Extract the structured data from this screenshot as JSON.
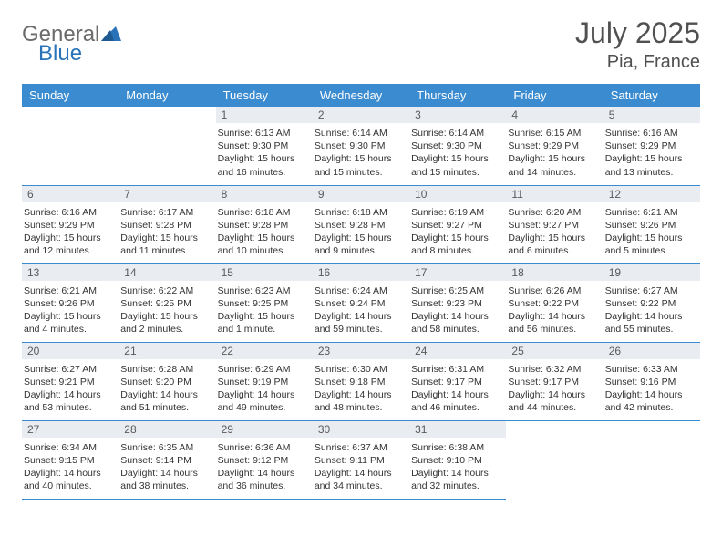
{
  "logo": {
    "word1": "General",
    "word2": "Blue"
  },
  "header": {
    "title": "July 2025",
    "location": "Pia, France"
  },
  "colors": {
    "header_bg": "#3a8bd0",
    "header_text": "#ffffff",
    "daynum_bg": "#e9edf1",
    "border": "#3a8bd0",
    "logo_gray": "#6b6b6b",
    "logo_blue": "#2a73b8"
  },
  "dayNames": [
    "Sunday",
    "Monday",
    "Tuesday",
    "Wednesday",
    "Thursday",
    "Friday",
    "Saturday"
  ],
  "startOffset": 2,
  "daysInMonth": 31,
  "labels": {
    "sunrise": "Sunrise:",
    "sunset": "Sunset:",
    "daylight": "Daylight:"
  },
  "days": {
    "1": {
      "sunrise": "6:13 AM",
      "sunset": "9:30 PM",
      "daylight": "15 hours and 16 minutes."
    },
    "2": {
      "sunrise": "6:14 AM",
      "sunset": "9:30 PM",
      "daylight": "15 hours and 15 minutes."
    },
    "3": {
      "sunrise": "6:14 AM",
      "sunset": "9:30 PM",
      "daylight": "15 hours and 15 minutes."
    },
    "4": {
      "sunrise": "6:15 AM",
      "sunset": "9:29 PM",
      "daylight": "15 hours and 14 minutes."
    },
    "5": {
      "sunrise": "6:16 AM",
      "sunset": "9:29 PM",
      "daylight": "15 hours and 13 minutes."
    },
    "6": {
      "sunrise": "6:16 AM",
      "sunset": "9:29 PM",
      "daylight": "15 hours and 12 minutes."
    },
    "7": {
      "sunrise": "6:17 AM",
      "sunset": "9:28 PM",
      "daylight": "15 hours and 11 minutes."
    },
    "8": {
      "sunrise": "6:18 AM",
      "sunset": "9:28 PM",
      "daylight": "15 hours and 10 minutes."
    },
    "9": {
      "sunrise": "6:18 AM",
      "sunset": "9:28 PM",
      "daylight": "15 hours and 9 minutes."
    },
    "10": {
      "sunrise": "6:19 AM",
      "sunset": "9:27 PM",
      "daylight": "15 hours and 8 minutes."
    },
    "11": {
      "sunrise": "6:20 AM",
      "sunset": "9:27 PM",
      "daylight": "15 hours and 6 minutes."
    },
    "12": {
      "sunrise": "6:21 AM",
      "sunset": "9:26 PM",
      "daylight": "15 hours and 5 minutes."
    },
    "13": {
      "sunrise": "6:21 AM",
      "sunset": "9:26 PM",
      "daylight": "15 hours and 4 minutes."
    },
    "14": {
      "sunrise": "6:22 AM",
      "sunset": "9:25 PM",
      "daylight": "15 hours and 2 minutes."
    },
    "15": {
      "sunrise": "6:23 AM",
      "sunset": "9:25 PM",
      "daylight": "15 hours and 1 minute."
    },
    "16": {
      "sunrise": "6:24 AM",
      "sunset": "9:24 PM",
      "daylight": "14 hours and 59 minutes."
    },
    "17": {
      "sunrise": "6:25 AM",
      "sunset": "9:23 PM",
      "daylight": "14 hours and 58 minutes."
    },
    "18": {
      "sunrise": "6:26 AM",
      "sunset": "9:22 PM",
      "daylight": "14 hours and 56 minutes."
    },
    "19": {
      "sunrise": "6:27 AM",
      "sunset": "9:22 PM",
      "daylight": "14 hours and 55 minutes."
    },
    "20": {
      "sunrise": "6:27 AM",
      "sunset": "9:21 PM",
      "daylight": "14 hours and 53 minutes."
    },
    "21": {
      "sunrise": "6:28 AM",
      "sunset": "9:20 PM",
      "daylight": "14 hours and 51 minutes."
    },
    "22": {
      "sunrise": "6:29 AM",
      "sunset": "9:19 PM",
      "daylight": "14 hours and 49 minutes."
    },
    "23": {
      "sunrise": "6:30 AM",
      "sunset": "9:18 PM",
      "daylight": "14 hours and 48 minutes."
    },
    "24": {
      "sunrise": "6:31 AM",
      "sunset": "9:17 PM",
      "daylight": "14 hours and 46 minutes."
    },
    "25": {
      "sunrise": "6:32 AM",
      "sunset": "9:17 PM",
      "daylight": "14 hours and 44 minutes."
    },
    "26": {
      "sunrise": "6:33 AM",
      "sunset": "9:16 PM",
      "daylight": "14 hours and 42 minutes."
    },
    "27": {
      "sunrise": "6:34 AM",
      "sunset": "9:15 PM",
      "daylight": "14 hours and 40 minutes."
    },
    "28": {
      "sunrise": "6:35 AM",
      "sunset": "9:14 PM",
      "daylight": "14 hours and 38 minutes."
    },
    "29": {
      "sunrise": "6:36 AM",
      "sunset": "9:12 PM",
      "daylight": "14 hours and 36 minutes."
    },
    "30": {
      "sunrise": "6:37 AM",
      "sunset": "9:11 PM",
      "daylight": "14 hours and 34 minutes."
    },
    "31": {
      "sunrise": "6:38 AM",
      "sunset": "9:10 PM",
      "daylight": "14 hours and 32 minutes."
    }
  }
}
